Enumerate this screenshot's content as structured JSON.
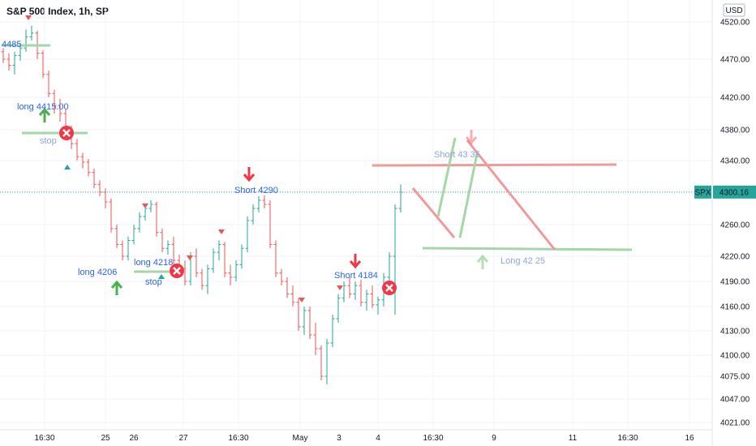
{
  "header": {
    "title": "S&P 500 Index, 1h, SP"
  },
  "currency": "USD",
  "colors": {
    "up": "#26a69a",
    "down": "#ef5350",
    "blue_text": "#2962ff",
    "green_arrow": "#4caf50",
    "red_arrow": "#f23645",
    "stop_red": "#f23645",
    "line_green": "#a5d6a7",
    "line_red": "#ef9a9a",
    "badge_bg": "#26a69a",
    "grid": "#f0f3fa",
    "price_line": "#26a69a"
  },
  "chart_data": {
    "type": "candlestick",
    "title": "S&P 500 Index, 1h, SP",
    "y_ticks": [
      "4520.00",
      "4470.00",
      "4420.00",
      "4380.00",
      "4340.00",
      "4300.00",
      "4260.00",
      "4220.00",
      "4190.00",
      "4160.00",
      "4130.00",
      "4100.00",
      "4075.00",
      "4047.00",
      "4021.00"
    ],
    "x_ticks": [
      "16:30",
      "25",
      "26",
      "27",
      "16:30",
      "May",
      "3",
      "4",
      "16:30",
      "9",
      "11",
      "16:30",
      "16"
    ],
    "last_price": {
      "label": "SPX",
      "value": "4300.16"
    },
    "bars": [
      [
        4480,
        4485,
        4465,
        4470
      ],
      [
        4470,
        4478,
        4455,
        4462
      ],
      [
        4462,
        4480,
        4450,
        4475
      ],
      [
        4475,
        4490,
        4468,
        4485
      ],
      [
        4485,
        4510,
        4480,
        4500
      ],
      [
        4500,
        4515,
        4495,
        4505
      ],
      [
        4505,
        4508,
        4470,
        4478
      ],
      [
        4478,
        4482,
        4445,
        4450
      ],
      [
        4450,
        4455,
        4420,
        4425
      ],
      [
        4425,
        4430,
        4400,
        4410
      ],
      [
        4410,
        4418,
        4390,
        4400
      ],
      [
        4400,
        4405,
        4375,
        4380
      ],
      [
        4380,
        4385,
        4355,
        4362
      ],
      [
        4362,
        4368,
        4340,
        4345
      ],
      [
        4345,
        4350,
        4330,
        4338
      ],
      [
        4338,
        4342,
        4320,
        4325
      ],
      [
        4325,
        4330,
        4305,
        4310
      ],
      [
        4310,
        4315,
        4295,
        4300
      ],
      [
        4300,
        4305,
        4280,
        4288
      ],
      [
        4288,
        4292,
        4250,
        4255
      ],
      [
        4255,
        4260,
        4230,
        4235
      ],
      [
        4235,
        4240,
        4215,
        4220
      ],
      [
        4220,
        4245,
        4215,
        4240
      ],
      [
        4240,
        4260,
        4235,
        4255
      ],
      [
        4255,
        4275,
        4250,
        4270
      ],
      [
        4270,
        4285,
        4265,
        4280
      ],
      [
        4280,
        4290,
        4275,
        4285
      ],
      [
        4285,
        4288,
        4245,
        4250
      ],
      [
        4250,
        4255,
        4225,
        4230
      ],
      [
        4230,
        4240,
        4222,
        4235
      ],
      [
        4235,
        4245,
        4210,
        4215
      ],
      [
        4215,
        4222,
        4200,
        4205
      ],
      [
        4205,
        4215,
        4185,
        4190
      ],
      [
        4190,
        4225,
        4185,
        4220
      ],
      [
        4220,
        4230,
        4195,
        4200
      ],
      [
        4200,
        4205,
        4180,
        4185
      ],
      [
        4185,
        4210,
        4175,
        4205
      ],
      [
        4205,
        4230,
        4200,
        4225
      ],
      [
        4225,
        4240,
        4215,
        4235
      ],
      [
        4235,
        4238,
        4195,
        4200
      ],
      [
        4200,
        4210,
        4185,
        4195
      ],
      [
        4195,
        4215,
        4190,
        4210
      ],
      [
        4210,
        4235,
        4205,
        4230
      ],
      [
        4230,
        4270,
        4225,
        4265
      ],
      [
        4265,
        4285,
        4260,
        4280
      ],
      [
        4280,
        4295,
        4275,
        4290
      ],
      [
        4290,
        4296,
        4280,
        4285
      ],
      [
        4285,
        4290,
        4230,
        4235
      ],
      [
        4235,
        4240,
        4195,
        4200
      ],
      [
        4200,
        4205,
        4185,
        4190
      ],
      [
        4190,
        4195,
        4170,
        4175
      ],
      [
        4175,
        4185,
        4160,
        4165
      ],
      [
        4165,
        4170,
        4130,
        4135
      ],
      [
        4135,
        4160,
        4125,
        4155
      ],
      [
        4155,
        4160,
        4120,
        4125
      ],
      [
        4125,
        4140,
        4100,
        4108
      ],
      [
        4108,
        4112,
        4070,
        4075
      ],
      [
        4075,
        4120,
        4065,
        4115
      ],
      [
        4115,
        4150,
        4110,
        4145
      ],
      [
        4145,
        4175,
        4140,
        4170
      ],
      [
        4170,
        4190,
        4165,
        4185
      ],
      [
        4185,
        4195,
        4170,
        4175
      ],
      [
        4175,
        4190,
        4168,
        4185
      ],
      [
        4185,
        4192,
        4160,
        4165
      ],
      [
        4165,
        4180,
        4155,
        4175
      ],
      [
        4175,
        4185,
        4158,
        4162
      ],
      [
        4162,
        4172,
        4150,
        4168
      ],
      [
        4168,
        4200,
        4160,
        4195
      ],
      [
        4195,
        4225,
        4190,
        4220
      ],
      [
        4220,
        4285,
        4150,
        4280
      ],
      [
        4280,
        4310,
        4275,
        4300
      ]
    ],
    "annotations": [
      {
        "text": "4485",
        "color": "blue"
      },
      {
        "text": "long  4415.00",
        "color": "blue"
      },
      {
        "text": "stop",
        "color": "lightblue"
      },
      {
        "text": "long  4206",
        "color": "blue"
      },
      {
        "text": "long  4218",
        "color": "blue"
      },
      {
        "text": "stop",
        "color": "blue"
      },
      {
        "text": "Short 4290",
        "color": "blue"
      },
      {
        "text": "Short 4184",
        "color": "blue"
      },
      {
        "text": "Short 43 35",
        "color": "lightblue"
      },
      {
        "text": "Long  42 25",
        "color": "lightblue"
      }
    ]
  }
}
